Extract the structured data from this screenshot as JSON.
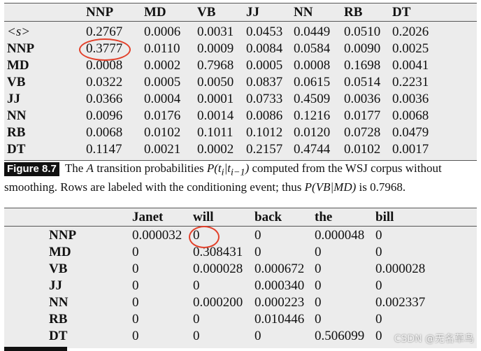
{
  "table_a": {
    "columns": [
      "NNP",
      "MD",
      "VB",
      "JJ",
      "NN",
      "RB",
      "DT"
    ],
    "rows": [
      {
        "label": "<s>",
        "values": [
          "0.2767",
          "0.0006",
          "0.0031",
          "0.0453",
          "0.0449",
          "0.0510",
          "0.2026"
        ]
      },
      {
        "label": "NNP",
        "values": [
          "0.3777",
          "0.0110",
          "0.0009",
          "0.0084",
          "0.0584",
          "0.0090",
          "0.0025"
        ]
      },
      {
        "label": "MD",
        "values": [
          "0.0008",
          "0.0002",
          "0.7968",
          "0.0005",
          "0.0008",
          "0.1698",
          "0.0041"
        ]
      },
      {
        "label": "VB",
        "values": [
          "0.0322",
          "0.0005",
          "0.0050",
          "0.0837",
          "0.0615",
          "0.0514",
          "0.2231"
        ]
      },
      {
        "label": "JJ",
        "values": [
          "0.0366",
          "0.0004",
          "0.0001",
          "0.0733",
          "0.4509",
          "0.0036",
          "0.0036"
        ]
      },
      {
        "label": "NN",
        "values": [
          "0.0096",
          "0.0176",
          "0.0014",
          "0.0086",
          "0.1216",
          "0.0177",
          "0.0068"
        ]
      },
      {
        "label": "RB",
        "values": [
          "0.0068",
          "0.0102",
          "0.1011",
          "0.1012",
          "0.0120",
          "0.0728",
          "0.0479"
        ]
      },
      {
        "label": "DT",
        "values": [
          "0.1147",
          "0.0021",
          "0.0002",
          "0.2157",
          "0.4744",
          "0.0102",
          "0.0017"
        ]
      }
    ]
  },
  "caption_a": {
    "tag": "Figure 8.7",
    "text_1": "The ",
    "a_italic": "A",
    "text_2": " transition probabilities ",
    "expr_1": "P(t",
    "sub_1": "i",
    "expr_2": "|t",
    "sub_2": "i−1",
    "expr_3": ")",
    "text_3": " computed from the WSJ corpus without smoothing. Rows are labeled with the conditioning event; thus ",
    "expr_4": "P(VB|MD)",
    "text_4": " is 0.7968."
  },
  "table_b": {
    "columns": [
      "Janet",
      "will",
      "back",
      "the",
      "bill"
    ],
    "rows": [
      {
        "label": "NNP",
        "values": [
          "0.000032",
          "0",
          "0",
          "0.000048",
          "0"
        ]
      },
      {
        "label": "MD",
        "values": [
          "0",
          "0.308431",
          "0",
          "0",
          "0"
        ]
      },
      {
        "label": "VB",
        "values": [
          "0",
          "0.000028",
          "0.000672",
          "0",
          "0.000028"
        ]
      },
      {
        "label": "JJ",
        "values": [
          "0",
          "0",
          "0.000340",
          "0",
          "0"
        ]
      },
      {
        "label": "NN",
        "values": [
          "0",
          "0.000200",
          "0.000223",
          "0",
          "0.002337"
        ]
      },
      {
        "label": "RB",
        "values": [
          "0",
          "0",
          "0.010446",
          "0",
          "0"
        ]
      },
      {
        "label": "DT",
        "values": [
          "0",
          "0",
          "0",
          "0.506099",
          "0"
        ]
      }
    ]
  },
  "watermark": "CSDN @无名草鸟"
}
